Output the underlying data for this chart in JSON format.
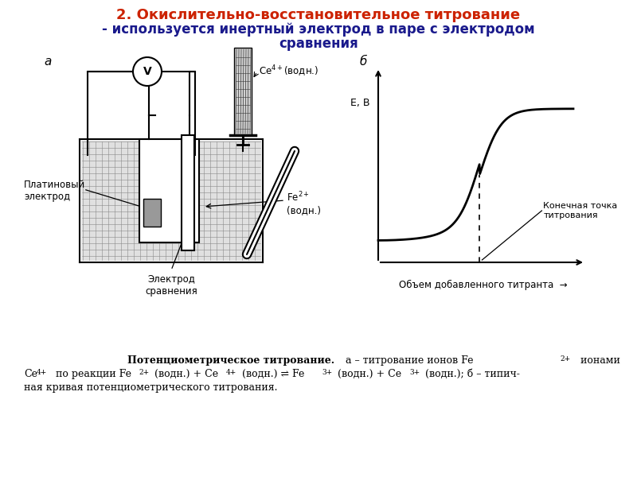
{
  "title_line1": "2. Окислительно-восстановительное титрование",
  "title_line2": "- используется инертный электрод в паре с электродом",
  "title_line3": "сравнения",
  "title_color": "#cc2200",
  "subtitle_color": "#1a1a8c",
  "bg_color": "#ffffff",
  "diagram_label_a": "а",
  "diagram_label_b": "б",
  "label_voltmeter": "V",
  "label_platinum": "Платиновый\nэлектрод",
  "label_electrode": "Электрод\nсравнения",
  "label_ce4": "Ce4+(водн.)",
  "label_fe2": "Fe2+\n(водн.)",
  "label_endpoint": "Конечная точка\nтитрования",
  "label_xaxis": "Объем добавленного титранта",
  "label_yaxis": "E, В"
}
